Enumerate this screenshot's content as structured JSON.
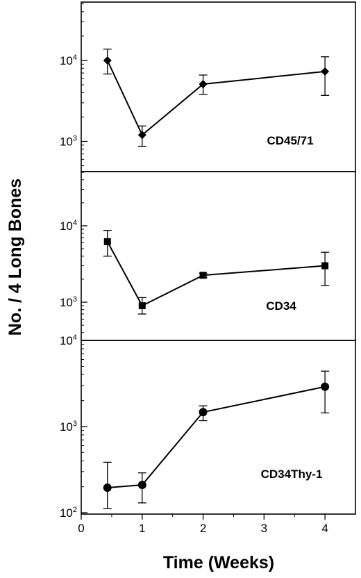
{
  "chart_data": [
    {
      "type": "line",
      "title": "",
      "panel_label": "CD45/71",
      "marker": "diamond",
      "yscale": "log",
      "ylim": [
        500,
        50000
      ],
      "x": [
        0.43,
        1,
        2,
        4
      ],
      "y": [
        10000,
        1200,
        5100,
        7300
      ],
      "error_low": [
        6800,
        870,
        3800,
        3700
      ],
      "error_high": [
        13800,
        1550,
        6600,
        11100
      ],
      "yticks": [
        {
          "base": "10",
          "exp": "4",
          "value": 10000
        },
        {
          "base": "10",
          "exp": "3",
          "value": 1000
        }
      ]
    },
    {
      "type": "line",
      "title": "",
      "panel_label": "CD34",
      "marker": "square",
      "yscale": "log",
      "ylim": [
        500,
        50000
      ],
      "x": [
        0.43,
        1,
        2,
        4
      ],
      "y": [
        6200,
        900,
        2250,
        3000
      ],
      "error_low": [
        4000,
        700,
        2100,
        1650
      ],
      "error_high": [
        8700,
        1150,
        2400,
        4500
      ],
      "yticks": [
        {
          "base": "10",
          "exp": "4",
          "value": 10000
        },
        {
          "base": "10",
          "exp": "3",
          "value": 1000
        }
      ]
    },
    {
      "type": "line",
      "title": "",
      "panel_label": "CD34Thy-1",
      "marker": "circle",
      "yscale": "log",
      "ylim": [
        100,
        10000
      ],
      "x": [
        0.43,
        1,
        2,
        4
      ],
      "y": [
        195,
        210,
        1470,
        2900
      ],
      "error_low": [
        112,
        130,
        1170,
        1440
      ],
      "error_high": [
        385,
        290,
        1740,
        4400
      ],
      "yticks": [
        {
          "base": "10",
          "exp": "4",
          "value": 10000
        },
        {
          "base": "10",
          "exp": "3",
          "value": 1000
        },
        {
          "base": "10",
          "exp": "2",
          "value": 100
        }
      ]
    }
  ],
  "x_axis": {
    "label": "Time (Weeks)",
    "lim": [
      0,
      4.5
    ],
    "ticks": [
      "0",
      "1",
      "2",
      "3",
      "4"
    ]
  },
  "y_axis": {
    "label": "No. / 4 Long Bones"
  }
}
